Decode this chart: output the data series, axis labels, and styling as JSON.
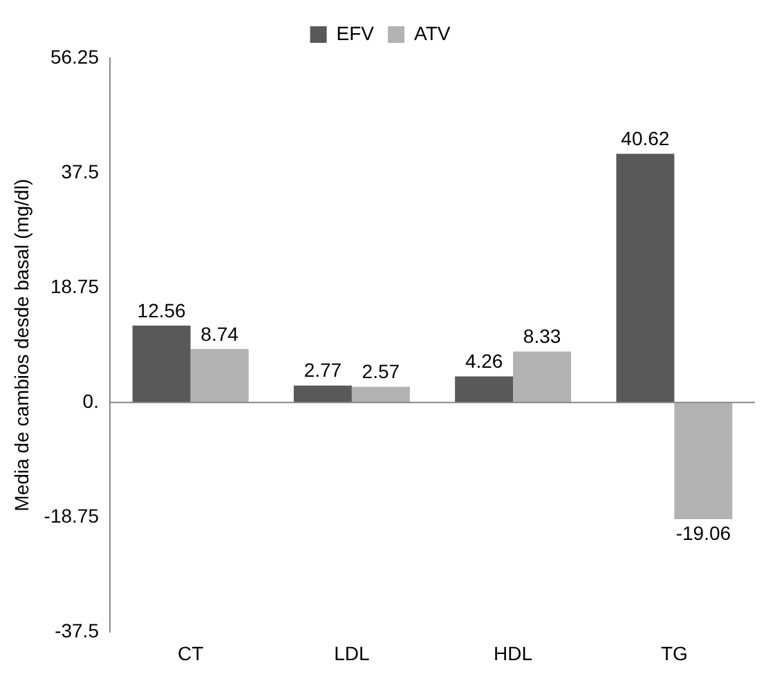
{
  "chart_data": {
    "type": "bar",
    "ylabel": "Media de cambios desde basal (mg/dl)",
    "categories": [
      "CT",
      "LDL",
      "HDL",
      "TG"
    ],
    "series": [
      {
        "name": "EFV",
        "color": "#595959",
        "values": [
          12.56,
          2.77,
          4.26,
          40.62
        ]
      },
      {
        "name": "ATV",
        "color": "#b3b3b3",
        "values": [
          8.74,
          2.57,
          8.33,
          -19.06
        ]
      }
    ],
    "ylim": [
      -37.5,
      56.25
    ],
    "yticks": [
      -37.5,
      -18.75,
      {
        "value": 0,
        "label": "0."
      },
      18.75,
      37.5,
      56.25
    ],
    "grid": false,
    "ref_lines": [
      {
        "axis": "y",
        "value": 0,
        "color": "#888888"
      }
    ],
    "legend": "top",
    "data_labels": true
  }
}
